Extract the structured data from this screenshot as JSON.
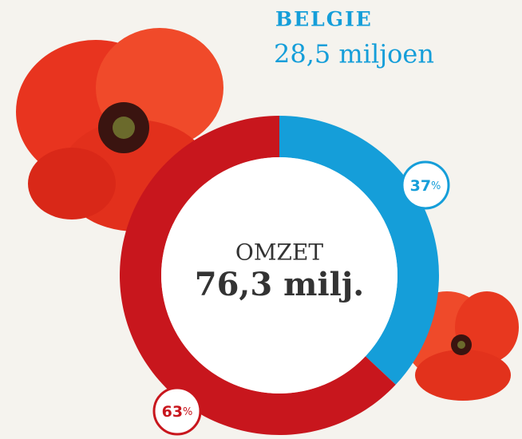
{
  "chart_data": {
    "type": "pie",
    "categories": [
      "BELGIE",
      null
    ],
    "annotation": "28,5 miljoen",
    "center_label": "OMZET",
    "center_value": "76,3 milj.",
    "values": [
      37,
      63
    ],
    "value_labels": [
      "37%",
      "63%"
    ],
    "colors": [
      "#159ed9",
      "#c8161d"
    ],
    "donut": true
  }
}
